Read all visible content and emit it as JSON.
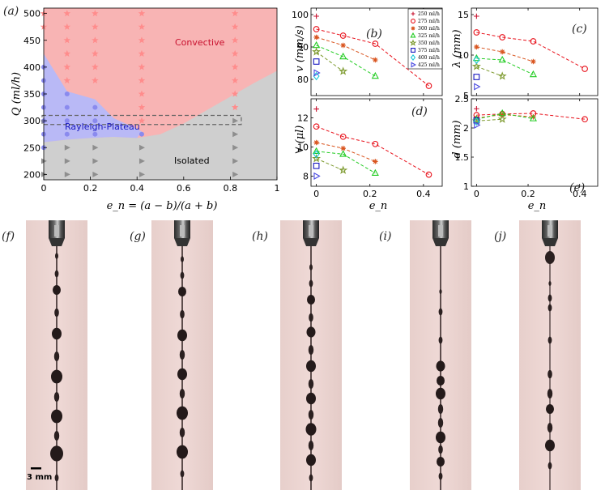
{
  "panels": {
    "a": "(a)",
    "b": "(b)",
    "c": "(c)",
    "d": "(d)",
    "e": "(e)",
    "f": "(f)",
    "g": "(g)",
    "h": "(h)",
    "i": "(i)",
    "j": "(j)"
  },
  "scale_bar_label": "3 mm",
  "colors": {
    "convective": "#f8b4b4",
    "rayleigh": "#b9b9f6",
    "isolated": "#cfcfcf"
  },
  "chart_data": [
    {
      "id": "a",
      "type": "scatter",
      "xlabel": "e_n = (a − b)/(a + b)",
      "ylabel": "Q (ml/h)",
      "xlim": [
        0,
        1
      ],
      "ylim": [
        190,
        510
      ],
      "xticks": [
        0,
        0.2,
        0.4,
        0.6,
        0.8,
        1
      ],
      "xtick_labels": [
        "0",
        "0.2",
        "0.4",
        "0.6",
        "0.8",
        "1"
      ],
      "yticks": [
        200,
        250,
        300,
        350,
        400,
        450,
        500
      ],
      "ytick_labels": [
        "200",
        "250",
        "300",
        "350",
        "400",
        "450",
        "500"
      ],
      "region_labels": [
        "Convective",
        "Rayleigh-Plateau",
        "Isolated"
      ],
      "regions": {
        "rayleigh_upper": [
          [
            0,
            425
          ],
          [
            0.1,
            355
          ],
          [
            0.22,
            340
          ],
          [
            0.3,
            305
          ],
          [
            0.4,
            285
          ],
          [
            0.42,
            280
          ]
        ],
        "boundary": [
          [
            0,
            260
          ],
          [
            0.1,
            265
          ],
          [
            0.2,
            268
          ],
          [
            0.3,
            270
          ],
          [
            0.4,
            268
          ],
          [
            0.5,
            275
          ],
          [
            0.6,
            295
          ],
          [
            0.7,
            320
          ],
          [
            0.8,
            345
          ],
          [
            0.9,
            370
          ],
          [
            1,
            393
          ]
        ]
      },
      "dashed_box": {
        "x": [
          0,
          0.84
        ],
        "y": [
          293,
          310
        ]
      },
      "series": [
        {
          "name": "Convective",
          "marker": "star",
          "points": [
            [
              0,
              500
            ],
            [
              0.1,
              500
            ],
            [
              0.22,
              500
            ],
            [
              0.42,
              500
            ],
            [
              0.82,
              500
            ],
            [
              0,
              475
            ],
            [
              0.1,
              475
            ],
            [
              0.22,
              475
            ],
            [
              0.42,
              475
            ],
            [
              0.82,
              475
            ],
            [
              0.1,
              450
            ],
            [
              0.22,
              450
            ],
            [
              0.42,
              450
            ],
            [
              0.82,
              450
            ],
            [
              0.1,
              425
            ],
            [
              0.22,
              425
            ],
            [
              0.42,
              425
            ],
            [
              0.82,
              425
            ],
            [
              0.1,
              400
            ],
            [
              0.22,
              400
            ],
            [
              0.42,
              400
            ],
            [
              0.82,
              400
            ],
            [
              0.1,
              375
            ],
            [
              0.22,
              375
            ],
            [
              0.42,
              375
            ],
            [
              0.82,
              375
            ],
            [
              0.42,
              350
            ],
            [
              0.82,
              350
            ],
            [
              0.42,
              325
            ],
            [
              0.82,
              325
            ],
            [
              0.42,
              300
            ]
          ]
        },
        {
          "name": "Rayleigh-Plateau",
          "marker": "circle",
          "points": [
            [
              0,
              400
            ],
            [
              0,
              375
            ],
            [
              0,
              350
            ],
            [
              0,
              325
            ],
            [
              0.1,
              350
            ],
            [
              0.1,
              325
            ],
            [
              0.22,
              325
            ],
            [
              0,
              300
            ],
            [
              0.1,
              300
            ],
            [
              0.22,
              300
            ],
            [
              0,
              275
            ],
            [
              0.1,
              275
            ],
            [
              0.22,
              275
            ],
            [
              0.42,
              275
            ],
            [
              0,
              250
            ]
          ]
        },
        {
          "name": "Isolated",
          "marker": "triangle-right",
          "points": [
            [
              0,
              225
            ],
            [
              0,
              200
            ],
            [
              0.1,
              250
            ],
            [
              0.1,
              225
            ],
            [
              0.1,
              200
            ],
            [
              0.22,
              250
            ],
            [
              0.22,
              225
            ],
            [
              0.22,
              200
            ],
            [
              0.42,
              250
            ],
            [
              0.42,
              225
            ],
            [
              0.42,
              200
            ],
            [
              0.82,
              300
            ],
            [
              0.82,
              275
            ],
            [
              0.82,
              250
            ],
            [
              0.82,
              225
            ],
            [
              0.82,
              200
            ]
          ]
        }
      ]
    },
    {
      "id": "b",
      "type": "line",
      "xlabel": "",
      "ylabel": "v (mm/s)",
      "xlim": [
        -0.02,
        0.47
      ],
      "ylim": [
        75,
        102
      ],
      "yticks": [
        80,
        90,
        100
      ],
      "ytick_labels": [
        "80",
        "90",
        "100"
      ],
      "legend": [
        "250 ml/h",
        "275 ml/h",
        "300 ml/h",
        "325 ml/h",
        "350 ml/h",
        "375 ml/h",
        "400 ml/h",
        "425 ml/h"
      ],
      "series": [
        {
          "name": "250 ml/h",
          "x": [
            0
          ],
          "values": [
            99.5
          ]
        },
        {
          "name": "275 ml/h",
          "x": [
            0,
            0.1,
            0.22,
            0.42
          ],
          "values": [
            95.5,
            93.5,
            91,
            78
          ]
        },
        {
          "name": "300 ml/h",
          "x": [
            0,
            0.1,
            0.22
          ],
          "values": [
            93,
            90.5,
            86
          ]
        },
        {
          "name": "325 ml/h",
          "x": [
            0,
            0.1,
            0.22
          ],
          "values": [
            90.5,
            87,
            81
          ]
        },
        {
          "name": "350 ml/h",
          "x": [
            0,
            0.1
          ],
          "values": [
            88.5,
            82.5
          ]
        },
        {
          "name": "375 ml/h",
          "x": [
            0
          ],
          "values": [
            85.5
          ]
        },
        {
          "name": "400 ml/h",
          "x": [
            0
          ],
          "values": [
            81
          ]
        },
        {
          "name": "425 ml/h",
          "x": [
            0
          ],
          "values": [
            82
          ]
        }
      ]
    },
    {
      "id": "c",
      "type": "line",
      "xlabel": "",
      "ylabel": "λ (mm)",
      "xlim": [
        -0.02,
        0.47
      ],
      "ylim": [
        5,
        15.8
      ],
      "yticks": [
        5,
        10,
        15
      ],
      "ytick_labels": [
        "5",
        "10",
        "15"
      ],
      "series": [
        {
          "name": "250 ml/h",
          "x": [
            0
          ],
          "values": [
            14.8
          ]
        },
        {
          "name": "275 ml/h",
          "x": [
            0,
            0.1,
            0.22,
            0.42
          ],
          "values": [
            12.8,
            12.2,
            11.7,
            8.3
          ]
        },
        {
          "name": "300 ml/h",
          "x": [
            0,
            0.1,
            0.22
          ],
          "values": [
            11,
            10.4,
            9.2
          ]
        },
        {
          "name": "325 ml/h",
          "x": [
            0,
            0.1,
            0.22
          ],
          "values": [
            9.6,
            9.4,
            7.6
          ]
        },
        {
          "name": "350 ml/h",
          "x": [
            0,
            0.1
          ],
          "values": [
            8.6,
            7.4
          ]
        },
        {
          "name": "375 ml/h",
          "x": [
            0
          ],
          "values": [
            7.3
          ]
        },
        {
          "name": "400 ml/h",
          "x": [
            0
          ],
          "values": [
            9.4
          ]
        },
        {
          "name": "425 ml/h",
          "x": [
            0
          ],
          "values": [
            6.1
          ]
        }
      ]
    },
    {
      "id": "d",
      "type": "line",
      "xlabel": "e_n",
      "ylabel": "∀ (μl)",
      "xlim": [
        -0.02,
        0.47
      ],
      "ylim": [
        7.3,
        13.3
      ],
      "xticks": [
        0,
        0.2,
        0.4
      ],
      "xtick_labels": [
        "0",
        "0.2",
        "0.4"
      ],
      "yticks": [
        8,
        10,
        12
      ],
      "ytick_labels": [
        "8",
        "10",
        "12"
      ],
      "series": [
        {
          "name": "250 ml/h",
          "x": [
            0
          ],
          "values": [
            12.6
          ]
        },
        {
          "name": "275 ml/h",
          "x": [
            0,
            0.1,
            0.22,
            0.42
          ],
          "values": [
            11.4,
            10.7,
            10.2,
            8.1
          ]
        },
        {
          "name": "300 ml/h",
          "x": [
            0,
            0.1,
            0.22
          ],
          "values": [
            10.3,
            9.9,
            9.0
          ]
        },
        {
          "name": "325 ml/h",
          "x": [
            0,
            0.1,
            0.22
          ],
          "values": [
            9.7,
            9.5,
            8.2
          ]
        },
        {
          "name": "350 ml/h",
          "x": [
            0,
            0.1
          ],
          "values": [
            9.2,
            8.4
          ]
        },
        {
          "name": "375 ml/h",
          "x": [
            0
          ],
          "values": [
            8.7
          ]
        },
        {
          "name": "400 ml/h",
          "x": [
            0
          ],
          "values": [
            9.5
          ]
        },
        {
          "name": "425 ml/h",
          "x": [
            0
          ],
          "values": [
            8.0
          ]
        }
      ]
    },
    {
      "id": "e",
      "type": "line",
      "xlabel": "e_n",
      "ylabel": "d (mm)",
      "xlim": [
        -0.02,
        0.47
      ],
      "ylim": [
        1.0,
        2.5
      ],
      "xticks": [
        0,
        0.2,
        0.4
      ],
      "xtick_labels": [
        "0",
        "0.2",
        "0.4"
      ],
      "yticks": [
        1,
        1.5,
        2,
        2.5
      ],
      "ytick_labels": [
        "1",
        "1.5",
        "2",
        "2.5"
      ],
      "series": [
        {
          "name": "250 ml/h",
          "x": [
            0
          ],
          "values": [
            2.33
          ]
        },
        {
          "name": "275 ml/h",
          "x": [
            0,
            0.1,
            0.22,
            0.42
          ],
          "values": [
            2.22,
            2.24,
            2.25,
            2.15
          ]
        },
        {
          "name": "300 ml/h",
          "x": [
            0,
            0.1,
            0.22
          ],
          "values": [
            2.17,
            2.23,
            2.19
          ]
        },
        {
          "name": "325 ml/h",
          "x": [
            0,
            0.1,
            0.22
          ],
          "values": [
            2.15,
            2.25,
            2.16
          ]
        },
        {
          "name": "350 ml/h",
          "x": [
            0,
            0.1
          ],
          "values": [
            2.12,
            2.15
          ]
        },
        {
          "name": "375 ml/h",
          "x": [
            0
          ],
          "values": [
            2.13
          ]
        },
        {
          "name": "400 ml/h",
          "x": [
            0
          ],
          "values": [
            2.11
          ]
        },
        {
          "name": "425 ml/h",
          "x": [
            0
          ],
          "values": [
            2.05
          ]
        }
      ]
    }
  ],
  "series_styles": {
    "250 ml/h": {
      "color": "#c8102e",
      "marker": "plus"
    },
    "275 ml/h": {
      "color": "#e8101a",
      "marker": "circle"
    },
    "300 ml/h": {
      "color": "#d9541e",
      "marker": "asterisk"
    },
    "325 ml/h": {
      "color": "#22cc22",
      "marker": "triangle"
    },
    "350 ml/h": {
      "color": "#7d9a2e",
      "marker": "star"
    },
    "375 ml/h": {
      "color": "#1818c0",
      "marker": "square"
    },
    "400 ml/h": {
      "color": "#1ec8d8",
      "marker": "diamond"
    },
    "425 ml/h": {
      "color": "#4a4ae0",
      "marker": "triangle-right"
    }
  }
}
